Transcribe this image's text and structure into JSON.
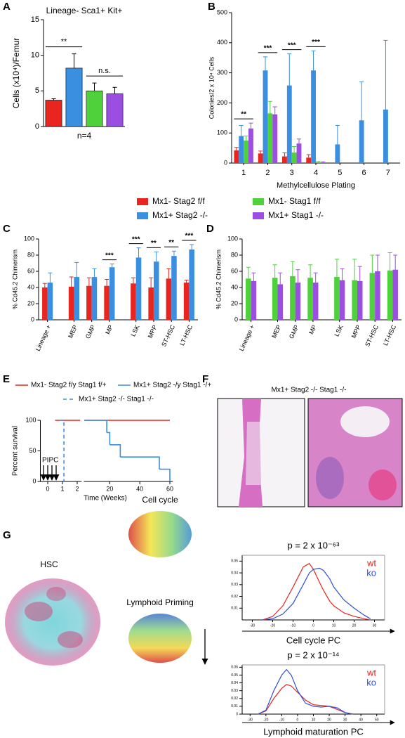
{
  "chart_data": [
    {
      "type": "bar",
      "panel": "A",
      "title": "Lineage- Sca1+ Kit+",
      "ylabel": "Cells (x10⁴)/Femur",
      "xlabel": "n=4",
      "values": [
        3.7,
        8.2,
        5.0,
        4.6
      ],
      "errors": [
        0.2,
        2.0,
        1.1,
        0.9
      ],
      "colors": [
        "#e8251f",
        "#3b8fe0",
        "#4fd13c",
        "#9b4fe0"
      ],
      "ylim": [
        0,
        15
      ],
      "yticks": [
        0,
        5,
        10,
        15
      ],
      "annotations": [
        "**",
        "n.s."
      ]
    },
    {
      "type": "grouped_bar",
      "panel": "B",
      "ylabel": "Colonies/2 x 10⁴ Cells",
      "xlabel": "Methylcellulose Plating",
      "categories": [
        "1",
        "2",
        "3",
        "4",
        "5",
        "6",
        "7"
      ],
      "series": [
        {
          "name": "Mx1- Stag2 f/f",
          "color": "#e8251f",
          "values": [
            42,
            32,
            22,
            18,
            null,
            null,
            null
          ],
          "errors": [
            10,
            8,
            12,
            10,
            null,
            null,
            null
          ]
        },
        {
          "name": "Mx1+ Stag2 -/-",
          "color": "#3b8fe0",
          "values": [
            90,
            308,
            258,
            308,
            62,
            142,
            178
          ],
          "errors": [
            35,
            45,
            105,
            65,
            63,
            128,
            230
          ]
        },
        {
          "name": "Mx1- Stag1 f/f",
          "color": "#4fd13c",
          "values": [
            75,
            165,
            35,
            3,
            null,
            null,
            null
          ],
          "errors": [
            15,
            40,
            20,
            2,
            null,
            null,
            null
          ]
        },
        {
          "name": "Mx1+ Stag1 -/-",
          "color": "#9b4fe0",
          "values": [
            115,
            162,
            65,
            2,
            null,
            null,
            null
          ],
          "errors": [
            18,
            25,
            15,
            2,
            null,
            null,
            null
          ]
        }
      ],
      "ylim": [
        0,
        500
      ],
      "yticks": [
        0,
        100,
        200,
        300,
        400,
        500
      ],
      "annotations": [
        "**",
        "***",
        "***",
        "***"
      ]
    },
    {
      "type": "grouped_bar",
      "panel": "C",
      "ylabel": "% Cd45.2 Chimerism",
      "categories": [
        "Lineage +",
        "MEP",
        "GMP",
        "MP",
        "LSK",
        "MPP",
        "ST-HSC",
        "LT-HSC"
      ],
      "series": [
        {
          "color": "#e8251f",
          "values": [
            40,
            41,
            42,
            42,
            45,
            40,
            51,
            46
          ],
          "errors": [
            5,
            12,
            10,
            8,
            7,
            12,
            12,
            3
          ]
        },
        {
          "color": "#3b8fe0",
          "values": [
            46,
            53,
            53,
            65,
            77,
            72,
            79,
            87
          ],
          "errors": [
            12,
            18,
            10,
            4,
            12,
            12,
            6,
            6
          ]
        }
      ],
      "ylim": [
        0,
        100
      ],
      "yticks": [
        0,
        20,
        40,
        60,
        80,
        100
      ],
      "annotations": [
        "***",
        "***",
        "**",
        "**",
        "***"
      ]
    },
    {
      "type": "grouped_bar",
      "panel": "D",
      "ylabel": "% Cd45.2 Chimerism",
      "categories": [
        "Lineage +",
        "MEP",
        "GMP",
        "MP",
        "LSK",
        "MPP",
        "ST-HSC",
        "LT-HSC"
      ],
      "series": [
        {
          "color": "#4fd13c",
          "values": [
            51,
            52,
            54,
            52,
            53,
            49,
            58,
            61
          ],
          "errors": [
            14,
            16,
            18,
            16,
            22,
            26,
            22,
            22
          ]
        },
        {
          "color": "#9b4fe0",
          "values": [
            48,
            44,
            46,
            46,
            49,
            48,
            60,
            62
          ],
          "errors": [
            10,
            14,
            16,
            12,
            14,
            18,
            20,
            18
          ]
        }
      ],
      "ylim": [
        0,
        100
      ],
      "yticks": [
        0,
        20,
        40,
        60,
        80,
        100
      ]
    },
    {
      "type": "survival",
      "panel": "E",
      "ylabel": "Percent survival",
      "xlabel": "Time (Weeks)",
      "annotation": "PIPC",
      "series": [
        {
          "name": "Mx1- Stag2 f/y Stag1 f/+",
          "color": "#e8251f",
          "linestyle": "solid",
          "x": [
            0.5,
            2.2,
            3,
            60
          ],
          "values": [
            100,
            100,
            100,
            100
          ]
        },
        {
          "name": "Mx1+ Stag2 -/y Stag1 -/+",
          "color": "#3b8fe0",
          "linestyle": "solid",
          "x": [
            3,
            18,
            20,
            27,
            53,
            60
          ],
          "values": [
            100,
            80,
            60,
            40,
            20,
            0
          ]
        },
        {
          "name": "Mx1+ Stag2 -/- Stag1 -/-",
          "color": "#3b8fe0",
          "linestyle": "dashed",
          "x": [
            0.8,
            1.1
          ],
          "values": [
            100,
            0
          ]
        }
      ],
      "xlim": [
        -0.5,
        62
      ],
      "xticks": [
        0,
        1,
        2,
        20,
        40,
        60
      ],
      "ylim": [
        0,
        100
      ],
      "yticks": [
        0,
        50,
        100
      ]
    },
    {
      "type": "image",
      "panel": "F",
      "title": "Mx1+ Stag2 -/- Stag1 -/-"
    },
    {
      "type": "embedding",
      "panel": "G",
      "titles": [
        "HSC",
        "Cell cycle",
        "Lymphoid Priming"
      ]
    },
    {
      "type": "density",
      "title": "p = 2 x 10⁻⁶³",
      "xlabel": "Cell cycle PC",
      "x": [
        -25,
        -20,
        -15,
        -10,
        -5,
        -2,
        0,
        3,
        5,
        8,
        10,
        15,
        20,
        25,
        28
      ],
      "series": [
        {
          "name": "wt",
          "color": "#e8251f",
          "values": [
            0,
            0.003,
            0.012,
            0.028,
            0.045,
            0.048,
            0.043,
            0.032,
            0.025,
            0.016,
            0.012,
            0.006,
            0.003,
            0.001,
            0
          ]
        },
        {
          "name": "ko",
          "color": "#2f4ed8",
          "values": [
            0,
            0.001,
            0.005,
            0.014,
            0.03,
            0.04,
            0.043,
            0.044,
            0.042,
            0.035,
            0.028,
            0.017,
            0.01,
            0.004,
            0.001
          ]
        }
      ],
      "xlim": [
        -35,
        35
      ],
      "xticks": [
        -30,
        -20,
        -10,
        0,
        10,
        20,
        30
      ],
      "ylim": [
        0,
        0.055
      ],
      "yticks": [
        0.01,
        0.02,
        0.03,
        0.04,
        0.05
      ]
    },
    {
      "type": "density",
      "title": "p = 2 x 10⁻¹⁴",
      "xlabel": "Lymphoid maturation PC",
      "x": [
        -25,
        -20,
        -15,
        -10,
        -7,
        -4,
        0,
        5,
        10,
        15,
        20,
        25,
        30,
        35
      ],
      "series": [
        {
          "name": "wt",
          "color": "#e8251f",
          "values": [
            0,
            0.004,
            0.02,
            0.033,
            0.038,
            0.036,
            0.028,
            0.018,
            0.012,
            0.011,
            0.01,
            0.006,
            0.002,
            0
          ]
        },
        {
          "name": "ko",
          "color": "#2f4ed8",
          "values": [
            0,
            0.005,
            0.03,
            0.05,
            0.057,
            0.05,
            0.03,
            0.014,
            0.01,
            0.009,
            0.01,
            0.008,
            0.002,
            0
          ]
        }
      ],
      "xlim": [
        -35,
        55
      ],
      "xticks": [
        -30,
        -20,
        -10,
        0,
        10,
        20,
        30,
        40,
        50
      ],
      "ylim": [
        0,
        0.063
      ],
      "yticks": [
        0,
        0.01,
        0.02,
        0.03,
        0.04,
        0.05,
        0.06
      ]
    }
  ]
}
